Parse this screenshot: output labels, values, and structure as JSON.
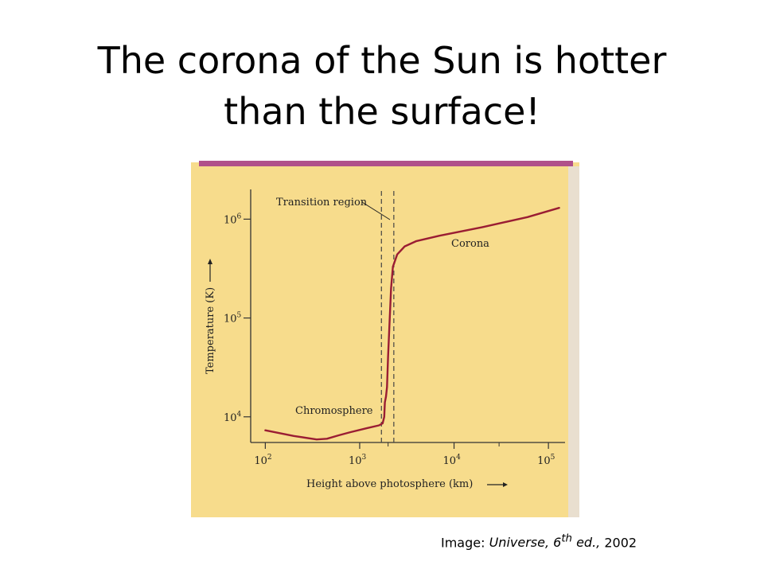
{
  "slide": {
    "title_line1": "The corona of the Sun is hotter",
    "title_line2": "than the surface!",
    "credit_prefix": "Image: ",
    "credit_source": "Universe, 6",
    "credit_sup": "th",
    "credit_edition": " ed.,",
    "credit_year": " 2002"
  },
  "colors": {
    "panel_background": "#f7dc8c",
    "top_band": "#b0508a",
    "curve": "#9a1d33",
    "axes": "#333333"
  },
  "chart_data": {
    "type": "line",
    "title": "",
    "xlabel": "Height above photosphere (km)",
    "ylabel": "Temperature (K)",
    "x_scale": "log",
    "y_scale": "log",
    "xlim": [
      70,
      150000
    ],
    "ylim": [
      5500,
      2000000
    ],
    "x_ticks": [
      {
        "value": 100,
        "base": "10",
        "exp": "2"
      },
      {
        "value": 1000,
        "base": "10",
        "exp": "3"
      },
      {
        "value": 10000,
        "base": "10",
        "exp": "4"
      },
      {
        "value": 100000,
        "base": "10",
        "exp": "5"
      }
    ],
    "x_minor_ticks": [
      2000,
      30000
    ],
    "y_ticks": [
      {
        "value": 10000,
        "base": "10",
        "exp": "4"
      },
      {
        "value": 100000,
        "base": "10",
        "exp": "5"
      },
      {
        "value": 1000000,
        "base": "10",
        "exp": "6"
      }
    ],
    "grid": false,
    "series": [
      {
        "points": [
          [
            100,
            7300
          ],
          [
            200,
            6400
          ],
          [
            350,
            5900
          ],
          [
            450,
            6000
          ],
          [
            600,
            6500
          ],
          [
            800,
            7000
          ],
          [
            1200,
            7700
          ],
          [
            1600,
            8200
          ],
          [
            1750,
            8600
          ],
          [
            1820,
            10000
          ],
          [
            1850,
            14000
          ],
          [
            1900,
            16000
          ],
          [
            1950,
            20000
          ],
          [
            2000,
            40000
          ],
          [
            2050,
            70000
          ],
          [
            2150,
            200000
          ],
          [
            2250,
            330000
          ],
          [
            2500,
            440000
          ],
          [
            3000,
            530000
          ],
          [
            4000,
            600000
          ],
          [
            7000,
            680000
          ],
          [
            20000,
            830000
          ],
          [
            60000,
            1050000
          ],
          [
            130000,
            1300000
          ]
        ]
      }
    ],
    "annotations": [
      {
        "text": "Transition region",
        "x_lines": [
          1700,
          2300
        ]
      },
      {
        "text": "Corona",
        "x": 4500,
        "y": 400000
      },
      {
        "text": "Chromosphere",
        "x": 280,
        "y": 8000
      }
    ]
  }
}
